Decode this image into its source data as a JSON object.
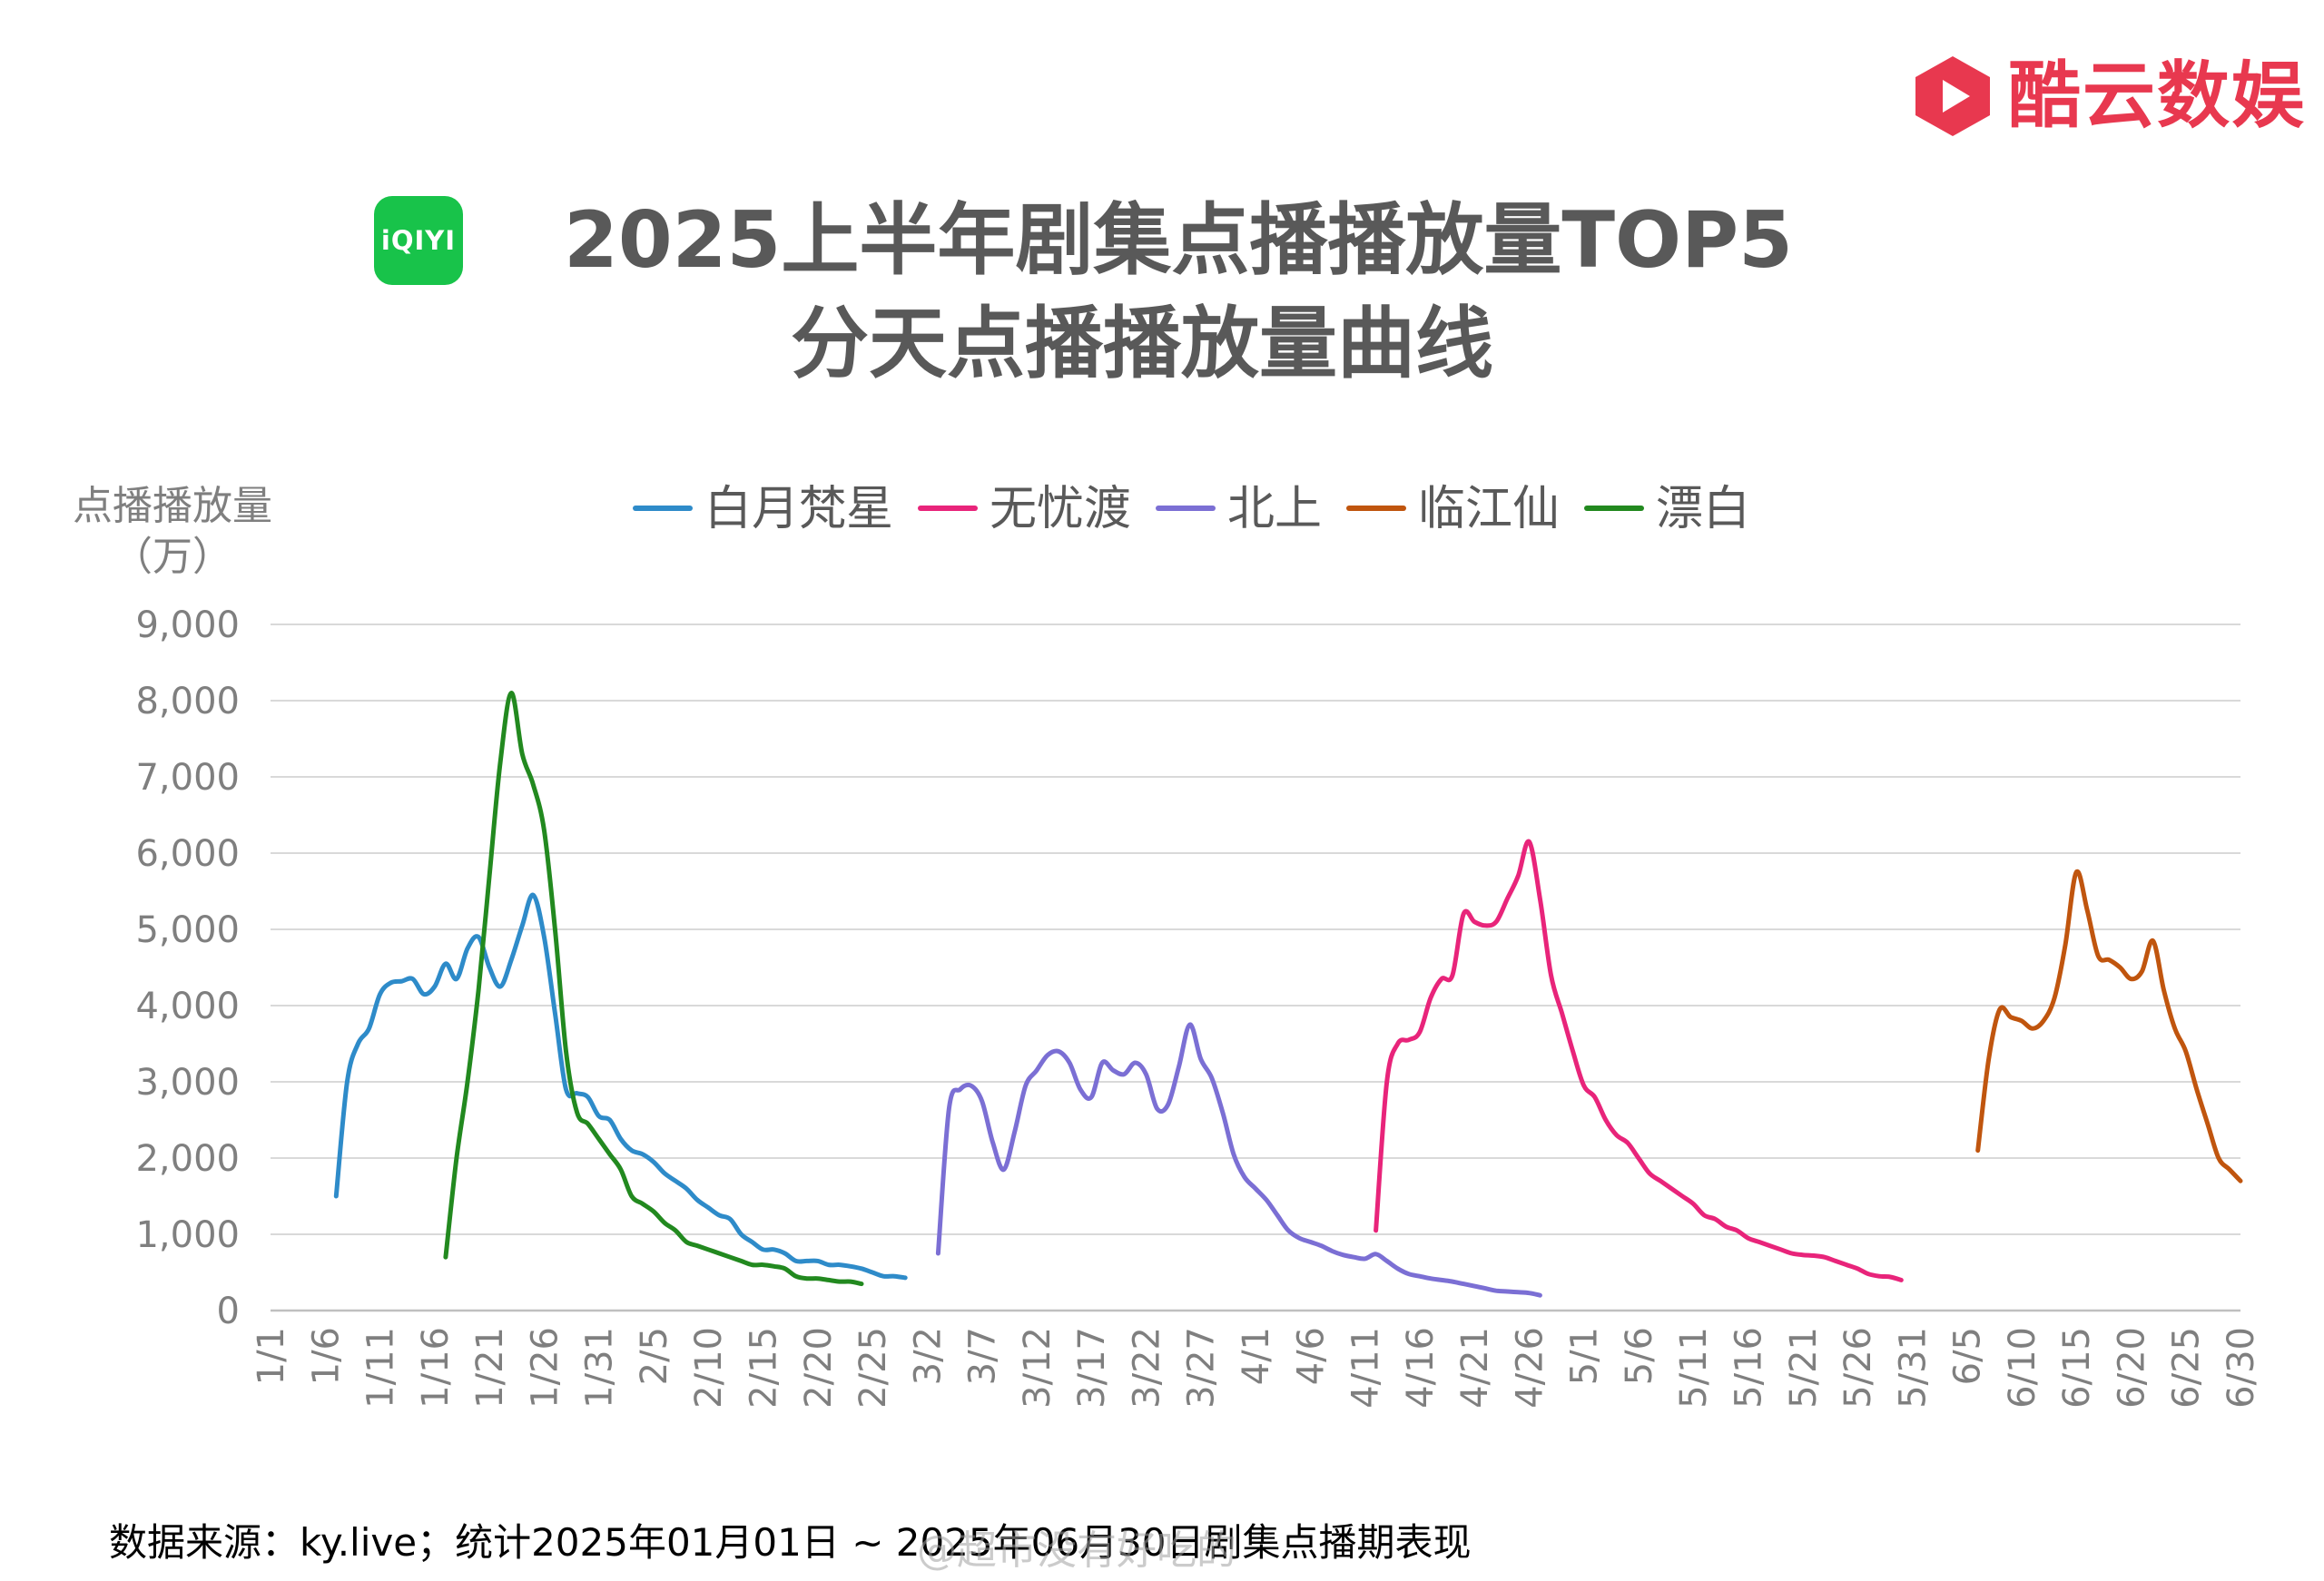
{
  "brand": {
    "name": "酷云数娱",
    "color": "#e8384f"
  },
  "platform_logo": {
    "text": "iQIYI",
    "color": "#18c34a"
  },
  "header": {
    "title_line1": "2025上半年剧集点播播放量TOP5",
    "title_line2": "分天点播播放量曲线"
  },
  "y_axis_title": {
    "line1": "点播播放量",
    "line2": "（万）"
  },
  "footer": {
    "source": "数据来源：ky.live；统计2025年01月01日 ~ 2025年06月30日剧集点播期表现"
  },
  "watermark": "@超市没有好吃的",
  "chart_data": {
    "type": "line",
    "x_unit": "2025 date (M/D)",
    "x_range": [
      "1/1",
      "6/30"
    ],
    "x_ticks": [
      "1/1",
      "1/6",
      "1/11",
      "1/16",
      "1/21",
      "1/26",
      "1/31",
      "2/5",
      "2/10",
      "2/15",
      "2/20",
      "2/25",
      "3/2",
      "3/7",
      "3/12",
      "3/17",
      "3/22",
      "3/27",
      "4/1",
      "4/6",
      "4/11",
      "4/16",
      "4/21",
      "4/26",
      "5/1",
      "5/6",
      "5/11",
      "5/16",
      "5/21",
      "5/26",
      "5/31",
      "6/5",
      "6/10",
      "6/15",
      "6/20",
      "6/25",
      "6/30"
    ],
    "ylim": [
      0,
      9000
    ],
    "y_ticks": [
      "0",
      "1,000",
      "2,000",
      "3,000",
      "4,000",
      "5,000",
      "6,000",
      "7,000",
      "8,000",
      "9,000"
    ],
    "y_tick_values": [
      0,
      1000,
      2000,
      3000,
      4000,
      5000,
      6000,
      7000,
      8000,
      9000
    ],
    "grid": true,
    "legend_position": "top",
    "series": [
      {
        "name": "白月梵星",
        "color": "#2e8bc9",
        "points": [
          [
            "1/7",
            1500
          ],
          [
            "1/8",
            3000
          ],
          [
            "1/9",
            3500
          ],
          [
            "1/10",
            3700
          ],
          [
            "1/11",
            4150
          ],
          [
            "1/12",
            4300
          ],
          [
            "1/13",
            4320
          ],
          [
            "1/14",
            4350
          ],
          [
            "1/15",
            4150
          ],
          [
            "1/16",
            4250
          ],
          [
            "1/17",
            4550
          ],
          [
            "1/18",
            4350
          ],
          [
            "1/19",
            4750
          ],
          [
            "1/20",
            4900
          ],
          [
            "1/21",
            4500
          ],
          [
            "1/22",
            4250
          ],
          [
            "1/23",
            4600
          ],
          [
            "1/24",
            5050
          ],
          [
            "1/25",
            5450
          ],
          [
            "1/26",
            4900
          ],
          [
            "1/27",
            3900
          ],
          [
            "1/28",
            2900
          ],
          [
            "1/29",
            2850
          ],
          [
            "1/30",
            2800
          ],
          [
            "1/31",
            2550
          ],
          [
            "2/1",
            2500
          ],
          [
            "2/2",
            2250
          ],
          [
            "2/3",
            2100
          ],
          [
            "2/4",
            2050
          ],
          [
            "2/5",
            1950
          ],
          [
            "2/6",
            1800
          ],
          [
            "2/7",
            1700
          ],
          [
            "2/8",
            1600
          ],
          [
            "2/9",
            1450
          ],
          [
            "2/10",
            1350
          ],
          [
            "2/11",
            1250
          ],
          [
            "2/12",
            1200
          ],
          [
            "2/13",
            1000
          ],
          [
            "2/14",
            900
          ],
          [
            "2/15",
            800
          ],
          [
            "2/16",
            800
          ],
          [
            "2/17",
            750
          ],
          [
            "2/18",
            650
          ],
          [
            "2/19",
            650
          ],
          [
            "2/20",
            650
          ],
          [
            "2/21",
            600
          ],
          [
            "2/22",
            600
          ],
          [
            "2/23",
            580
          ],
          [
            "2/24",
            550
          ],
          [
            "2/25",
            500
          ],
          [
            "2/26",
            450
          ],
          [
            "2/27",
            450
          ],
          [
            "2/28",
            430
          ]
        ]
      },
      {
        "name": "无忧渡",
        "color": "#e8247a",
        "points": [
          [
            "4/12",
            1050
          ],
          [
            "4/13",
            3000
          ],
          [
            "4/14",
            3500
          ],
          [
            "4/15",
            3550
          ],
          [
            "4/16",
            3650
          ],
          [
            "4/17",
            4100
          ],
          [
            "4/18",
            4350
          ],
          [
            "4/19",
            4400
          ],
          [
            "4/20",
            5200
          ],
          [
            "4/21",
            5100
          ],
          [
            "4/22",
            5050
          ],
          [
            "4/23",
            5100
          ],
          [
            "4/24",
            5400
          ],
          [
            "4/25",
            5700
          ],
          [
            "4/26",
            6150
          ],
          [
            "4/27",
            5400
          ],
          [
            "4/28",
            4400
          ],
          [
            "4/29",
            3900
          ],
          [
            "4/30",
            3400
          ],
          [
            "5/1",
            2950
          ],
          [
            "5/2",
            2800
          ],
          [
            "5/3",
            2500
          ],
          [
            "5/4",
            2300
          ],
          [
            "5/5",
            2200
          ],
          [
            "5/6",
            2000
          ],
          [
            "5/7",
            1800
          ],
          [
            "5/8",
            1700
          ],
          [
            "5/9",
            1600
          ],
          [
            "5/10",
            1500
          ],
          [
            "5/11",
            1400
          ],
          [
            "5/12",
            1250
          ],
          [
            "5/13",
            1200
          ],
          [
            "5/14",
            1100
          ],
          [
            "5/15",
            1050
          ],
          [
            "5/16",
            950
          ],
          [
            "5/17",
            900
          ],
          [
            "5/18",
            850
          ],
          [
            "5/19",
            800
          ],
          [
            "5/20",
            750
          ],
          [
            "5/21",
            730
          ],
          [
            "5/22",
            720
          ],
          [
            "5/23",
            700
          ],
          [
            "5/24",
            650
          ],
          [
            "5/25",
            600
          ],
          [
            "5/26",
            550
          ],
          [
            "5/27",
            480
          ],
          [
            "5/28",
            450
          ],
          [
            "5/29",
            440
          ],
          [
            "5/30",
            400
          ]
        ]
      },
      {
        "name": "北上",
        "color": "#7b6fd4",
        "points": [
          [
            "3/3",
            750
          ],
          [
            "3/4",
            2650
          ],
          [
            "3/5",
            2900
          ],
          [
            "3/6",
            2950
          ],
          [
            "3/7",
            2750
          ],
          [
            "3/8",
            2200
          ],
          [
            "3/9",
            1850
          ],
          [
            "3/10",
            2350
          ],
          [
            "3/11",
            2950
          ],
          [
            "3/12",
            3150
          ],
          [
            "3/13",
            3350
          ],
          [
            "3/14",
            3400
          ],
          [
            "3/15",
            3250
          ],
          [
            "3/16",
            2900
          ],
          [
            "3/17",
            2800
          ],
          [
            "3/18",
            3250
          ],
          [
            "3/19",
            3150
          ],
          [
            "3/20",
            3100
          ],
          [
            "3/21",
            3250
          ],
          [
            "3/22",
            3100
          ],
          [
            "3/23",
            2650
          ],
          [
            "3/24",
            2700
          ],
          [
            "3/25",
            3200
          ],
          [
            "3/26",
            3750
          ],
          [
            "3/27",
            3300
          ],
          [
            "3/28",
            3050
          ],
          [
            "3/29",
            2600
          ],
          [
            "3/30",
            2050
          ],
          [
            "3/31",
            1750
          ],
          [
            "4/1",
            1600
          ],
          [
            "4/2",
            1450
          ],
          [
            "4/3",
            1250
          ],
          [
            "4/4",
            1050
          ],
          [
            "4/5",
            950
          ],
          [
            "4/6",
            900
          ],
          [
            "4/7",
            850
          ],
          [
            "4/8",
            780
          ],
          [
            "4/9",
            730
          ],
          [
            "4/10",
            700
          ],
          [
            "4/11",
            680
          ],
          [
            "4/12",
            740
          ],
          [
            "4/13",
            650
          ],
          [
            "4/14",
            550
          ],
          [
            "4/15",
            480
          ],
          [
            "4/16",
            450
          ],
          [
            "4/17",
            420
          ],
          [
            "4/18",
            400
          ],
          [
            "4/19",
            380
          ],
          [
            "4/20",
            350
          ],
          [
            "4/21",
            320
          ],
          [
            "4/22",
            290
          ],
          [
            "4/23",
            260
          ],
          [
            "4/24",
            250
          ],
          [
            "4/25",
            240
          ],
          [
            "4/26",
            230
          ],
          [
            "4/27",
            200
          ]
        ]
      },
      {
        "name": "临江仙",
        "color": "#c0550e",
        "points": [
          [
            "6/6",
            2100
          ],
          [
            "6/7",
            3300
          ],
          [
            "6/8",
            3950
          ],
          [
            "6/9",
            3850
          ],
          [
            "6/10",
            3800
          ],
          [
            "6/11",
            3700
          ],
          [
            "6/12",
            3800
          ],
          [
            "6/13",
            4100
          ],
          [
            "6/14",
            4800
          ],
          [
            "6/15",
            5750
          ],
          [
            "6/16",
            5250
          ],
          [
            "6/17",
            4650
          ],
          [
            "6/18",
            4600
          ],
          [
            "6/19",
            4500
          ],
          [
            "6/20",
            4350
          ],
          [
            "6/21",
            4450
          ],
          [
            "6/22",
            4850
          ],
          [
            "6/23",
            4200
          ],
          [
            "6/24",
            3700
          ],
          [
            "6/25",
            3400
          ],
          [
            "6/26",
            2900
          ],
          [
            "6/27",
            2450
          ],
          [
            "6/28",
            2000
          ],
          [
            "6/29",
            1850
          ],
          [
            "6/30",
            1700
          ]
        ]
      },
      {
        "name": "漂白",
        "color": "#22891f",
        "points": [
          [
            "1/17",
            700
          ],
          [
            "1/18",
            2000
          ],
          [
            "1/19",
            3000
          ],
          [
            "1/20",
            4200
          ],
          [
            "1/21",
            5700
          ],
          [
            "1/22",
            7200
          ],
          [
            "1/23",
            8100
          ],
          [
            "1/24",
            7300
          ],
          [
            "1/25",
            6900
          ],
          [
            "1/26",
            6300
          ],
          [
            "1/27",
            5000
          ],
          [
            "1/28",
            3400
          ],
          [
            "1/29",
            2600
          ],
          [
            "1/30",
            2450
          ],
          [
            "1/31",
            2250
          ],
          [
            "2/1",
            2050
          ],
          [
            "2/2",
            1850
          ],
          [
            "2/3",
            1500
          ],
          [
            "2/4",
            1400
          ],
          [
            "2/5",
            1300
          ],
          [
            "2/6",
            1150
          ],
          [
            "2/7",
            1050
          ],
          [
            "2/8",
            900
          ],
          [
            "2/9",
            850
          ],
          [
            "2/10",
            800
          ],
          [
            "2/11",
            750
          ],
          [
            "2/12",
            700
          ],
          [
            "2/13",
            650
          ],
          [
            "2/14",
            600
          ],
          [
            "2/15",
            600
          ],
          [
            "2/16",
            580
          ],
          [
            "2/17",
            550
          ],
          [
            "2/18",
            450
          ],
          [
            "2/19",
            420
          ],
          [
            "2/20",
            420
          ],
          [
            "2/21",
            400
          ],
          [
            "2/22",
            380
          ],
          [
            "2/23",
            380
          ],
          [
            "2/24",
            350
          ]
        ]
      }
    ]
  }
}
